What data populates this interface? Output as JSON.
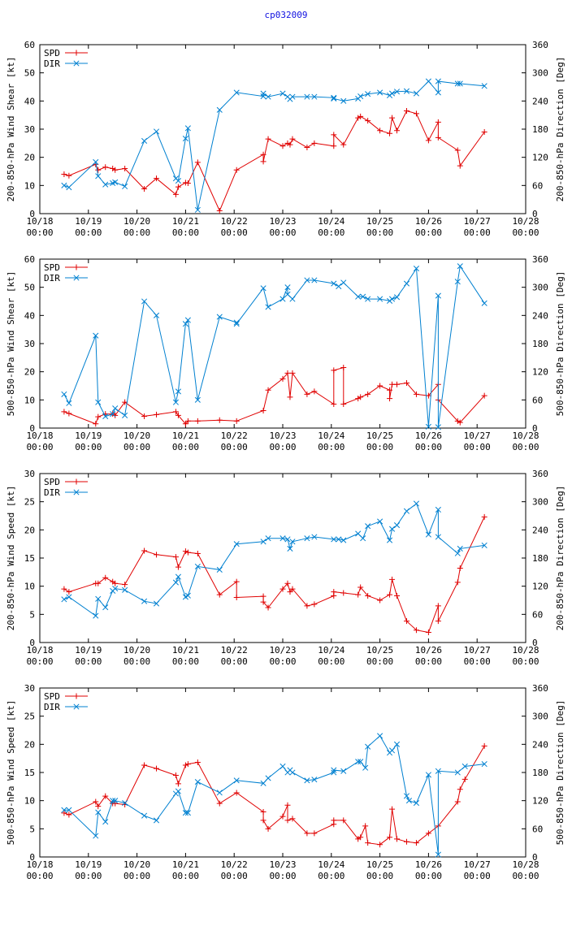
{
  "page": {
    "title": "cp032009"
  },
  "colors": {
    "spd": "#e00000",
    "dir": "#0080d0",
    "axis": "#000000",
    "title": "#1010e0"
  },
  "chart_data": [
    {
      "type": "line",
      "id": "chart-200-850-shear",
      "ylabel": "200-850-hPa Wind Shear [kt]",
      "y2label": "200-850-hPa Direction [Deg]",
      "ylim": [
        0,
        60
      ],
      "yticks": [
        0,
        10,
        20,
        30,
        40,
        50,
        60
      ],
      "y2lim": [
        0,
        360
      ],
      "y2ticks": [
        0,
        60,
        120,
        180,
        240,
        300,
        360
      ],
      "xlim": [
        0,
        10
      ],
      "xtick_labels": [
        [
          "10/18",
          "00:00"
        ],
        [
          "10/19",
          "00:00"
        ],
        [
          "10/20",
          "00:00"
        ],
        [
          "10/21",
          "00:00"
        ],
        [
          "10/22",
          "00:00"
        ],
        [
          "10/23",
          "00:00"
        ],
        [
          "10/24",
          "00:00"
        ],
        [
          "10/25",
          "00:00"
        ],
        [
          "10/26",
          "00:00"
        ],
        [
          "10/27",
          "00:00"
        ],
        [
          "10/28",
          "00:00"
        ]
      ],
      "legend": [
        {
          "label": "SPD",
          "series": "spd"
        },
        {
          "label": "DIR",
          "series": "dir"
        }
      ],
      "series": [
        {
          "name": "SPD",
          "key": "spd",
          "axis": "y",
          "x": [
            0.5,
            0.6,
            1.15,
            1.2,
            1.35,
            1.5,
            1.55,
            1.75,
            2.15,
            2.4,
            2.8,
            2.85,
            3.0,
            3.05,
            3.25,
            3.7,
            4.05,
            4.6,
            4.6,
            4.7,
            5.0,
            5.1,
            5.15,
            5.2,
            5.5,
            5.65,
            6.05,
            6.05,
            6.25,
            6.55,
            6.6,
            6.75,
            7.0,
            7.2,
            7.25,
            7.35,
            7.55,
            7.75,
            8.0,
            8.2,
            8.2,
            8.6,
            8.65,
            9.15
          ],
          "y": [
            14,
            13.5,
            17.5,
            15.5,
            16.5,
            16,
            15.5,
            16,
            8.8,
            12.5,
            6.8,
            9.5,
            11,
            10.8,
            18.2,
            1,
            15.5,
            21,
            18.5,
            26.5,
            24,
            25,
            24.5,
            26.5,
            23.5,
            25,
            24,
            28,
            24.5,
            34,
            34.5,
            33,
            29.5,
            28.5,
            34,
            29.5,
            36.5,
            35.5,
            26,
            32.5,
            27,
            22.5,
            17,
            29
          ]
        },
        {
          "name": "DIR",
          "key": "dir",
          "axis": "y2",
          "x": [
            0.5,
            0.6,
            1.15,
            1.2,
            1.35,
            1.5,
            1.55,
            1.75,
            2.15,
            2.4,
            2.8,
            2.85,
            3.0,
            3.05,
            3.25,
            3.7,
            4.05,
            4.6,
            4.6,
            4.7,
            5.0,
            5.1,
            5.15,
            5.2,
            5.5,
            5.65,
            6.05,
            6.05,
            6.25,
            6.55,
            6.6,
            6.75,
            7.0,
            7.2,
            7.25,
            7.35,
            7.55,
            7.75,
            8.0,
            8.2,
            8.2,
            8.6,
            8.65,
            9.15
          ],
          "y": [
            60,
            56,
            110,
            80,
            62,
            65,
            67,
            58,
            155,
            175,
            75,
            70,
            160,
            182,
            8,
            221,
            258,
            250,
            256,
            249,
            256,
            249,
            244,
            249,
            249,
            249,
            247,
            245,
            240,
            245,
            250,
            255,
            258,
            252,
            256,
            260,
            261,
            256,
            282,
            258,
            282,
            277,
            277,
            272
          ]
        }
      ]
    },
    {
      "type": "line",
      "id": "chart-500-850-shear",
      "ylabel": "500-850-hPa Wind Shear [kt]",
      "y2label": "500-850-hPa Direction [Deg]",
      "ylim": [
        0,
        60
      ],
      "yticks": [
        0,
        10,
        20,
        30,
        40,
        50,
        60
      ],
      "y2lim": [
        0,
        360
      ],
      "y2ticks": [
        0,
        60,
        120,
        180,
        240,
        300,
        360
      ],
      "xlim": [
        0,
        10
      ],
      "xtick_labels": [
        [
          "10/18",
          "00:00"
        ],
        [
          "10/19",
          "00:00"
        ],
        [
          "10/20",
          "00:00"
        ],
        [
          "10/21",
          "00:00"
        ],
        [
          "10/22",
          "00:00"
        ],
        [
          "10/23",
          "00:00"
        ],
        [
          "10/24",
          "00:00"
        ],
        [
          "10/25",
          "00:00"
        ],
        [
          "10/26",
          "00:00"
        ],
        [
          "10/27",
          "00:00"
        ],
        [
          "10/28",
          "00:00"
        ]
      ],
      "legend": [
        {
          "label": "SPD",
          "series": "spd"
        },
        {
          "label": "DIR",
          "series": "dir"
        }
      ],
      "series": [
        {
          "name": "SPD",
          "key": "spd",
          "axis": "y",
          "x": [
            0.5,
            0.6,
            1.15,
            1.2,
            1.35,
            1.5,
            1.55,
            1.75,
            2.15,
            2.4,
            2.8,
            2.85,
            3.0,
            3.05,
            3.25,
            3.7,
            4.05,
            4.6,
            4.7,
            5.0,
            5.1,
            5.15,
            5.2,
            5.5,
            5.65,
            6.05,
            6.05,
            6.25,
            6.25,
            6.55,
            6.6,
            6.75,
            7.0,
            7.2,
            7.2,
            7.25,
            7.35,
            7.55,
            7.75,
            8.0,
            8.2,
            8.2,
            8.6,
            8.65,
            9.15
          ],
          "y": [
            5.8,
            5.2,
            1.5,
            4,
            5,
            5,
            4.5,
            9.2,
            4.2,
            4.8,
            5.8,
            4.5,
            1.5,
            2.5,
            2.5,
            2.8,
            2.5,
            6.2,
            13.5,
            17.5,
            19.5,
            11,
            19.5,
            12,
            13,
            8.5,
            20.5,
            21.5,
            8.5,
            10.5,
            11,
            12,
            15,
            13.5,
            10.5,
            15.5,
            15.5,
            16,
            12,
            11.5,
            15.5,
            10,
            2.5,
            2,
            11.5
          ]
        },
        {
          "name": "DIR",
          "key": "dir",
          "axis": "y2",
          "x": [
            0.5,
            0.6,
            1.15,
            1.2,
            1.35,
            1.5,
            1.55,
            1.75,
            2.15,
            2.4,
            2.8,
            2.85,
            3.0,
            3.05,
            3.25,
            3.7,
            4.05,
            4.05,
            4.6,
            4.7,
            5.0,
            5.1,
            5.1,
            5.2,
            5.5,
            5.65,
            6.05,
            6.15,
            6.25,
            6.55,
            6.65,
            6.75,
            7.0,
            7.2,
            7.25,
            7.35,
            7.55,
            7.75,
            8.0,
            8.2,
            8.2,
            8.6,
            8.65,
            9.15
          ],
          "y": [
            72,
            53,
            197,
            55,
            25,
            30,
            42,
            27,
            270,
            240,
            55,
            78,
            222,
            230,
            60,
            237,
            225,
            222,
            298,
            258,
            275,
            300,
            285,
            275,
            315,
            315,
            308,
            302,
            310,
            280,
            280,
            275,
            275,
            271,
            275,
            279,
            308,
            340,
            3,
            282,
            2,
            312,
            345,
            266
          ]
        }
      ]
    },
    {
      "type": "line",
      "id": "chart-200-850-speed",
      "ylabel": "200-850-hPa Wind Speed [kt]",
      "y2label": "200-850-hPa Direction [Deg]",
      "ylim": [
        0,
        30
      ],
      "yticks": [
        0,
        5,
        10,
        15,
        20,
        25,
        30
      ],
      "y2lim": [
        0,
        360
      ],
      "y2ticks": [
        0,
        60,
        120,
        180,
        240,
        300,
        360
      ],
      "xlim": [
        0,
        10
      ],
      "xtick_labels": [
        [
          "10/18",
          "00:00"
        ],
        [
          "10/19",
          "00:00"
        ],
        [
          "10/20",
          "00:00"
        ],
        [
          "10/21",
          "00:00"
        ],
        [
          "10/22",
          "00:00"
        ],
        [
          "10/23",
          "00:00"
        ],
        [
          "10/24",
          "00:00"
        ],
        [
          "10/25",
          "00:00"
        ],
        [
          "10/26",
          "00:00"
        ],
        [
          "10/27",
          "00:00"
        ],
        [
          "10/28",
          "00:00"
        ]
      ],
      "legend": [
        {
          "label": "SPD",
          "series": "spd"
        },
        {
          "label": "DIR",
          "series": "dir"
        }
      ],
      "series": [
        {
          "name": "SPD",
          "key": "spd",
          "axis": "y",
          "x": [
            0.5,
            0.6,
            1.15,
            1.2,
            1.35,
            1.5,
            1.55,
            1.75,
            2.15,
            2.4,
            2.8,
            2.85,
            3.0,
            3.05,
            3.25,
            3.7,
            4.05,
            4.05,
            4.6,
            4.6,
            4.7,
            5.0,
            5.1,
            5.15,
            5.2,
            5.5,
            5.65,
            6.05,
            6.05,
            6.25,
            6.55,
            6.6,
            6.75,
            7.0,
            7.2,
            7.25,
            7.35,
            7.55,
            7.75,
            8.0,
            8.2,
            8.2,
            8.6,
            8.65,
            9.15
          ],
          "y": [
            9.5,
            9,
            10.5,
            10.5,
            11.5,
            10.8,
            10.5,
            10.3,
            16.3,
            15.6,
            15.2,
            13.4,
            16.2,
            16,
            15.8,
            8.5,
            10.8,
            8,
            8.2,
            7.2,
            6.2,
            9.5,
            10.5,
            9,
            9.5,
            6.5,
            6.8,
            8.3,
            9,
            8.8,
            8.5,
            9.8,
            8.3,
            7.5,
            8.5,
            11.2,
            8.3,
            3.8,
            2.2,
            1.8,
            6.5,
            3.8,
            10.7,
            13.2,
            22.3
          ]
        },
        {
          "name": "DIR",
          "key": "dir",
          "axis": "y2",
          "x": [
            0.5,
            0.6,
            1.15,
            1.2,
            1.35,
            1.5,
            1.55,
            1.75,
            2.15,
            2.4,
            2.8,
            2.85,
            3.0,
            3.05,
            3.25,
            3.7,
            4.05,
            4.6,
            4.7,
            5.0,
            5.1,
            5.15,
            5.2,
            5.5,
            5.65,
            6.05,
            6.15,
            6.25,
            6.55,
            6.65,
            6.75,
            7.0,
            7.2,
            7.25,
            7.35,
            7.55,
            7.75,
            8.0,
            8.2,
            8.2,
            8.6,
            8.65,
            9.15
          ],
          "y": [
            92,
            97,
            57,
            93,
            75,
            110,
            115,
            112,
            88,
            83,
            128,
            140,
            97,
            100,
            162,
            155,
            210,
            215,
            222,
            222,
            220,
            200,
            215,
            222,
            225,
            220,
            220,
            218,
            232,
            222,
            248,
            258,
            218,
            242,
            250,
            280,
            296,
            230,
            283,
            225,
            190,
            200,
            207
          ]
        }
      ]
    },
    {
      "type": "line",
      "id": "chart-500-850-speed",
      "ylabel": "500-850-hPa Wind Speed [kt]",
      "y2label": "500-850-hPa Direction [Deg]",
      "ylim": [
        0,
        30
      ],
      "yticks": [
        0,
        5,
        10,
        15,
        20,
        25,
        30
      ],
      "y2lim": [
        0,
        360
      ],
      "y2ticks": [
        0,
        60,
        120,
        180,
        240,
        300,
        360
      ],
      "xlim": [
        0,
        10
      ],
      "xtick_labels": [
        [
          "10/18",
          "00:00"
        ],
        [
          "10/19",
          "00:00"
        ],
        [
          "10/20",
          "00:00"
        ],
        [
          "10/21",
          "00:00"
        ],
        [
          "10/22",
          "00:00"
        ],
        [
          "10/23",
          "00:00"
        ],
        [
          "10/24",
          "00:00"
        ],
        [
          "10/25",
          "00:00"
        ],
        [
          "10/26",
          "00:00"
        ],
        [
          "10/27",
          "00:00"
        ],
        [
          "10/28",
          "00:00"
        ]
      ],
      "legend": [
        {
          "label": "SPD",
          "series": "spd"
        },
        {
          "label": "DIR",
          "series": "dir"
        }
      ],
      "series": [
        {
          "name": "SPD",
          "key": "spd",
          "axis": "y",
          "x": [
            0.5,
            0.6,
            1.15,
            1.2,
            1.35,
            1.5,
            1.55,
            1.75,
            2.15,
            2.4,
            2.8,
            2.85,
            3.0,
            3.05,
            3.25,
            3.7,
            4.05,
            4.6,
            4.6,
            4.7,
            5.0,
            5.1,
            5.1,
            5.2,
            5.5,
            5.65,
            6.05,
            6.05,
            6.25,
            6.55,
            6.6,
            6.7,
            6.75,
            7.0,
            7.2,
            7.25,
            7.35,
            7.55,
            7.75,
            8.0,
            8.2,
            8.6,
            8.65,
            8.75,
            9.15
          ],
          "y": [
            7.8,
            7.5,
            9.8,
            9,
            10.8,
            9.5,
            9.5,
            9.3,
            16.3,
            15.7,
            14.5,
            13,
            16.3,
            16.5,
            16.8,
            9.5,
            11.4,
            8,
            6.5,
            5,
            7.2,
            9.2,
            6.5,
            6.8,
            4.2,
            4.2,
            5.8,
            6.5,
            6.5,
            3.2,
            3.5,
            5.5,
            2.5,
            2.2,
            3.5,
            8.5,
            3.2,
            2.7,
            2.5,
            4.2,
            5.5,
            9.8,
            12,
            13.8,
            19.7
          ]
        },
        {
          "name": "DIR",
          "key": "dir",
          "axis": "y2",
          "x": [
            0.5,
            0.6,
            1.15,
            1.2,
            1.35,
            1.5,
            1.55,
            1.75,
            2.15,
            2.4,
            2.8,
            2.85,
            3.0,
            3.05,
            3.25,
            3.7,
            4.05,
            4.6,
            4.7,
            5.0,
            5.1,
            5.15,
            5.2,
            5.5,
            5.65,
            6.05,
            6.05,
            6.25,
            6.55,
            6.6,
            6.7,
            6.75,
            7.0,
            7.2,
            7.25,
            7.35,
            7.55,
            7.6,
            7.75,
            8.0,
            8.2,
            8.2,
            8.6,
            8.75,
            9.15
          ],
          "y": [
            100,
            100,
            45,
            95,
            75,
            120,
            120,
            115,
            88,
            78,
            135,
            140,
            94,
            94,
            160,
            137,
            163,
            157,
            168,
            193,
            180,
            185,
            180,
            163,
            165,
            180,
            185,
            183,
            203,
            203,
            190,
            235,
            258,
            222,
            227,
            240,
            130,
            120,
            115,
            175,
            5,
            183,
            180,
            193,
            198
          ]
        }
      ]
    }
  ]
}
